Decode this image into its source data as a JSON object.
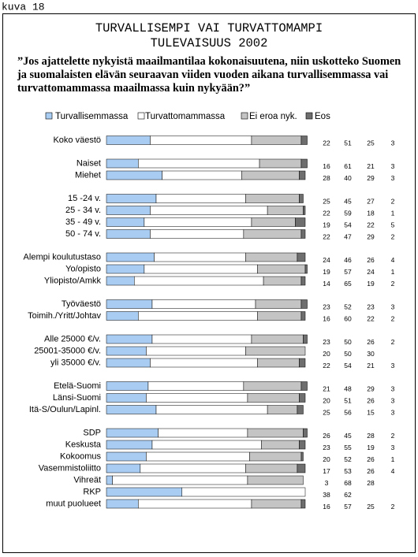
{
  "figure_label": "kuva 18",
  "chart_data": {
    "type": "stacked-bar-horizontal",
    "title": [
      "TURVALLISEMPI VAI TURVATTOMAMPI",
      "TULEVAISUUS 2002"
    ],
    "subtitle": "”Jos ajattelette nykyistä maailmantilaa kokonaisuutena, niin uskotteko Suomen ja suomalaisten elävän seuraavan viiden vuoden aikana turvallisemmassa vai turvattomammassa maailmassa kuin nykyään?”",
    "categories": [
      "Koko väestö",
      "Naiset",
      "Miehet",
      "15 -24 v.",
      "25 - 34 v.",
      "35 - 49 v.",
      "50 - 74 v.",
      "Alempi koulutustaso",
      "Yo/opisto",
      "Yliopisto/Amkk",
      "Työväestö",
      "Toimih./Yritt/Johtav",
      "Alle 25000 €/v.",
      "25001-35000 €/v.",
      "yli 35000 €/v.",
      "Etelä-Suomi",
      "Länsi-Suomi",
      "Itä-S/Oulun/Lapinl.",
      "SDP",
      "Keskusta",
      "Kokoomus",
      "Vasemmistoliitto",
      "Vihreät",
      "RKP",
      "muut puolueet"
    ],
    "series": [
      {
        "name": "Turvallisemmassa",
        "color": "#a9cdf2",
        "values": [
          22,
          16,
          28,
          25,
          22,
          19,
          22,
          24,
          19,
          14,
          23,
          16,
          23,
          20,
          22,
          21,
          20,
          25,
          26,
          23,
          20,
          17,
          3,
          38,
          16
        ]
      },
      {
        "name": "Turvattomammassa",
        "color": "#ffffff",
        "values": [
          51,
          61,
          40,
          45,
          59,
          54,
          47,
          46,
          57,
          65,
          52,
          60,
          50,
          50,
          54,
          48,
          51,
          56,
          45,
          55,
          52,
          53,
          68,
          62,
          57
        ]
      },
      {
        "name": "Ei eroa nyk.",
        "color": "#c4c4c4",
        "values": [
          25,
          21,
          29,
          27,
          18,
          22,
          29,
          26,
          24,
          19,
          23,
          22,
          26,
          30,
          21,
          29,
          26,
          15,
          28,
          19,
          26,
          26,
          28,
          null,
          25
        ]
      },
      {
        "name": "Eos",
        "color": "#6e6e6e",
        "values": [
          3,
          3,
          3,
          2,
          1,
          5,
          2,
          4,
          1,
          2,
          3,
          2,
          2,
          null,
          3,
          3,
          3,
          3,
          2,
          3,
          1,
          4,
          null,
          null,
          2
        ]
      }
    ],
    "xlim": [
      0,
      100
    ]
  }
}
